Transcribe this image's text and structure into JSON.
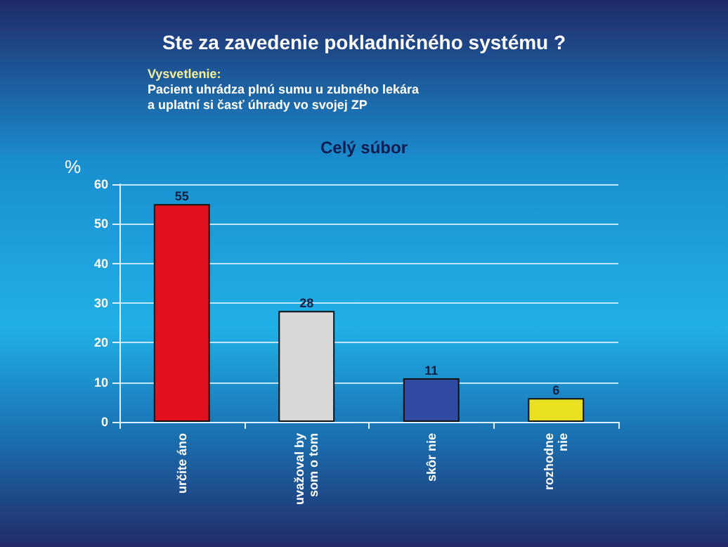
{
  "chart_data": {
    "type": "bar",
    "title": "Ste za zavedenie pokladničného systému ?",
    "subtitle": "Celý súbor",
    "ylabel": "%",
    "annotations": [
      "Vysvetlenie:",
      "Pacient uhrádza plnú sumu u zubného lekára\na uplatní si časť úhrady vo svojej ZP"
    ],
    "categories": [
      "určite áno",
      "uvažoval by\nsom o tom",
      "skôr nie",
      "rozhodne\nnie"
    ],
    "values": [
      55,
      28,
      11,
      6
    ],
    "colors": [
      "#e0101e",
      "#d8d8d8",
      "#2f4aa0",
      "#e8e020"
    ],
    "ylim": [
      0,
      60
    ],
    "yticks": [
      0,
      10,
      20,
      30,
      40,
      50,
      60
    ],
    "grid": "y",
    "data_labels": true
  }
}
